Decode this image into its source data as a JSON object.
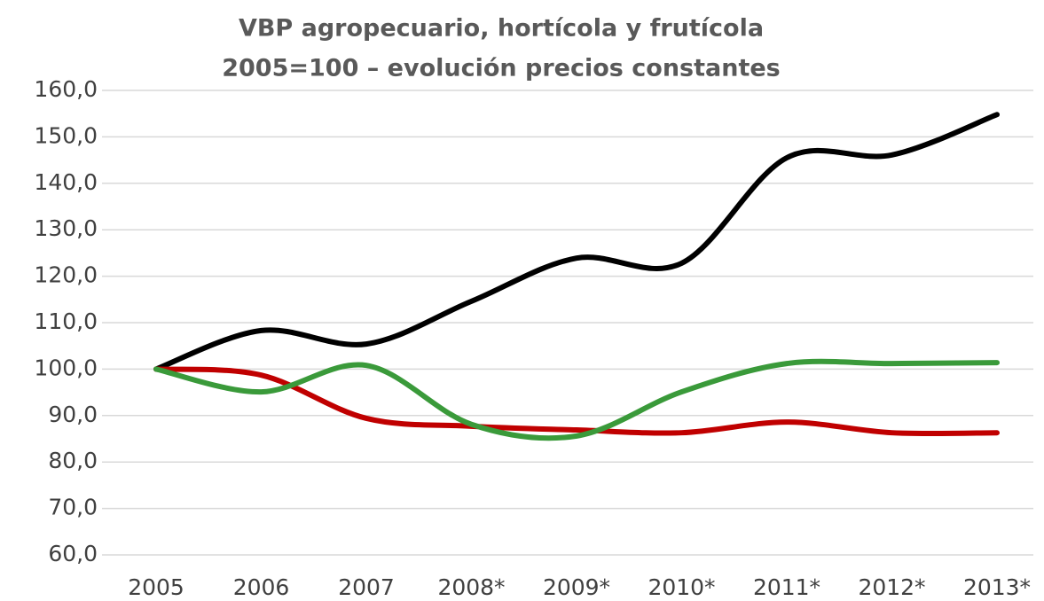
{
  "chart_data": {
    "type": "line",
    "title": "VBP agropecuario, hortícola y frutícola",
    "subtitle": "2005=100 – evolución precios constantes",
    "categories": [
      "2005",
      "2006",
      "2007",
      "2008*",
      "2009*",
      "2010*",
      "2011*",
      "2012*",
      "2013*"
    ],
    "series": [
      {
        "color": "#000000",
        "values": [
          100,
          108.3,
          105.4,
          114.6,
          123.9,
          122.8,
          145.5,
          146.1,
          154.8
        ]
      },
      {
        "color": "#c00000",
        "values": [
          100,
          98.7,
          89.4,
          87.7,
          86.9,
          86.3,
          88.6,
          86.3,
          86.3
        ]
      },
      {
        "color": "#3a9a3a",
        "values": [
          100,
          95.1,
          100.8,
          88.1,
          85.6,
          95.1,
          101.2,
          101.2,
          101.4
        ]
      }
    ],
    "ylim": [
      60,
      160
    ],
    "yticks": [
      {
        "value": 60,
        "label": "60,0"
      },
      {
        "value": 70,
        "label": "70,0"
      },
      {
        "value": 80,
        "label": "80,0"
      },
      {
        "value": 90,
        "label": "90,0"
      },
      {
        "value": 100,
        "label": "100,0"
      },
      {
        "value": 110,
        "label": "110,0"
      },
      {
        "value": 120,
        "label": "120,0"
      },
      {
        "value": 130,
        "label": "130,0"
      },
      {
        "value": 140,
        "label": "140,0"
      },
      {
        "value": 150,
        "label": "150,0"
      },
      {
        "value": 160,
        "label": "160,0"
      }
    ],
    "grid": true,
    "smooth": true
  }
}
